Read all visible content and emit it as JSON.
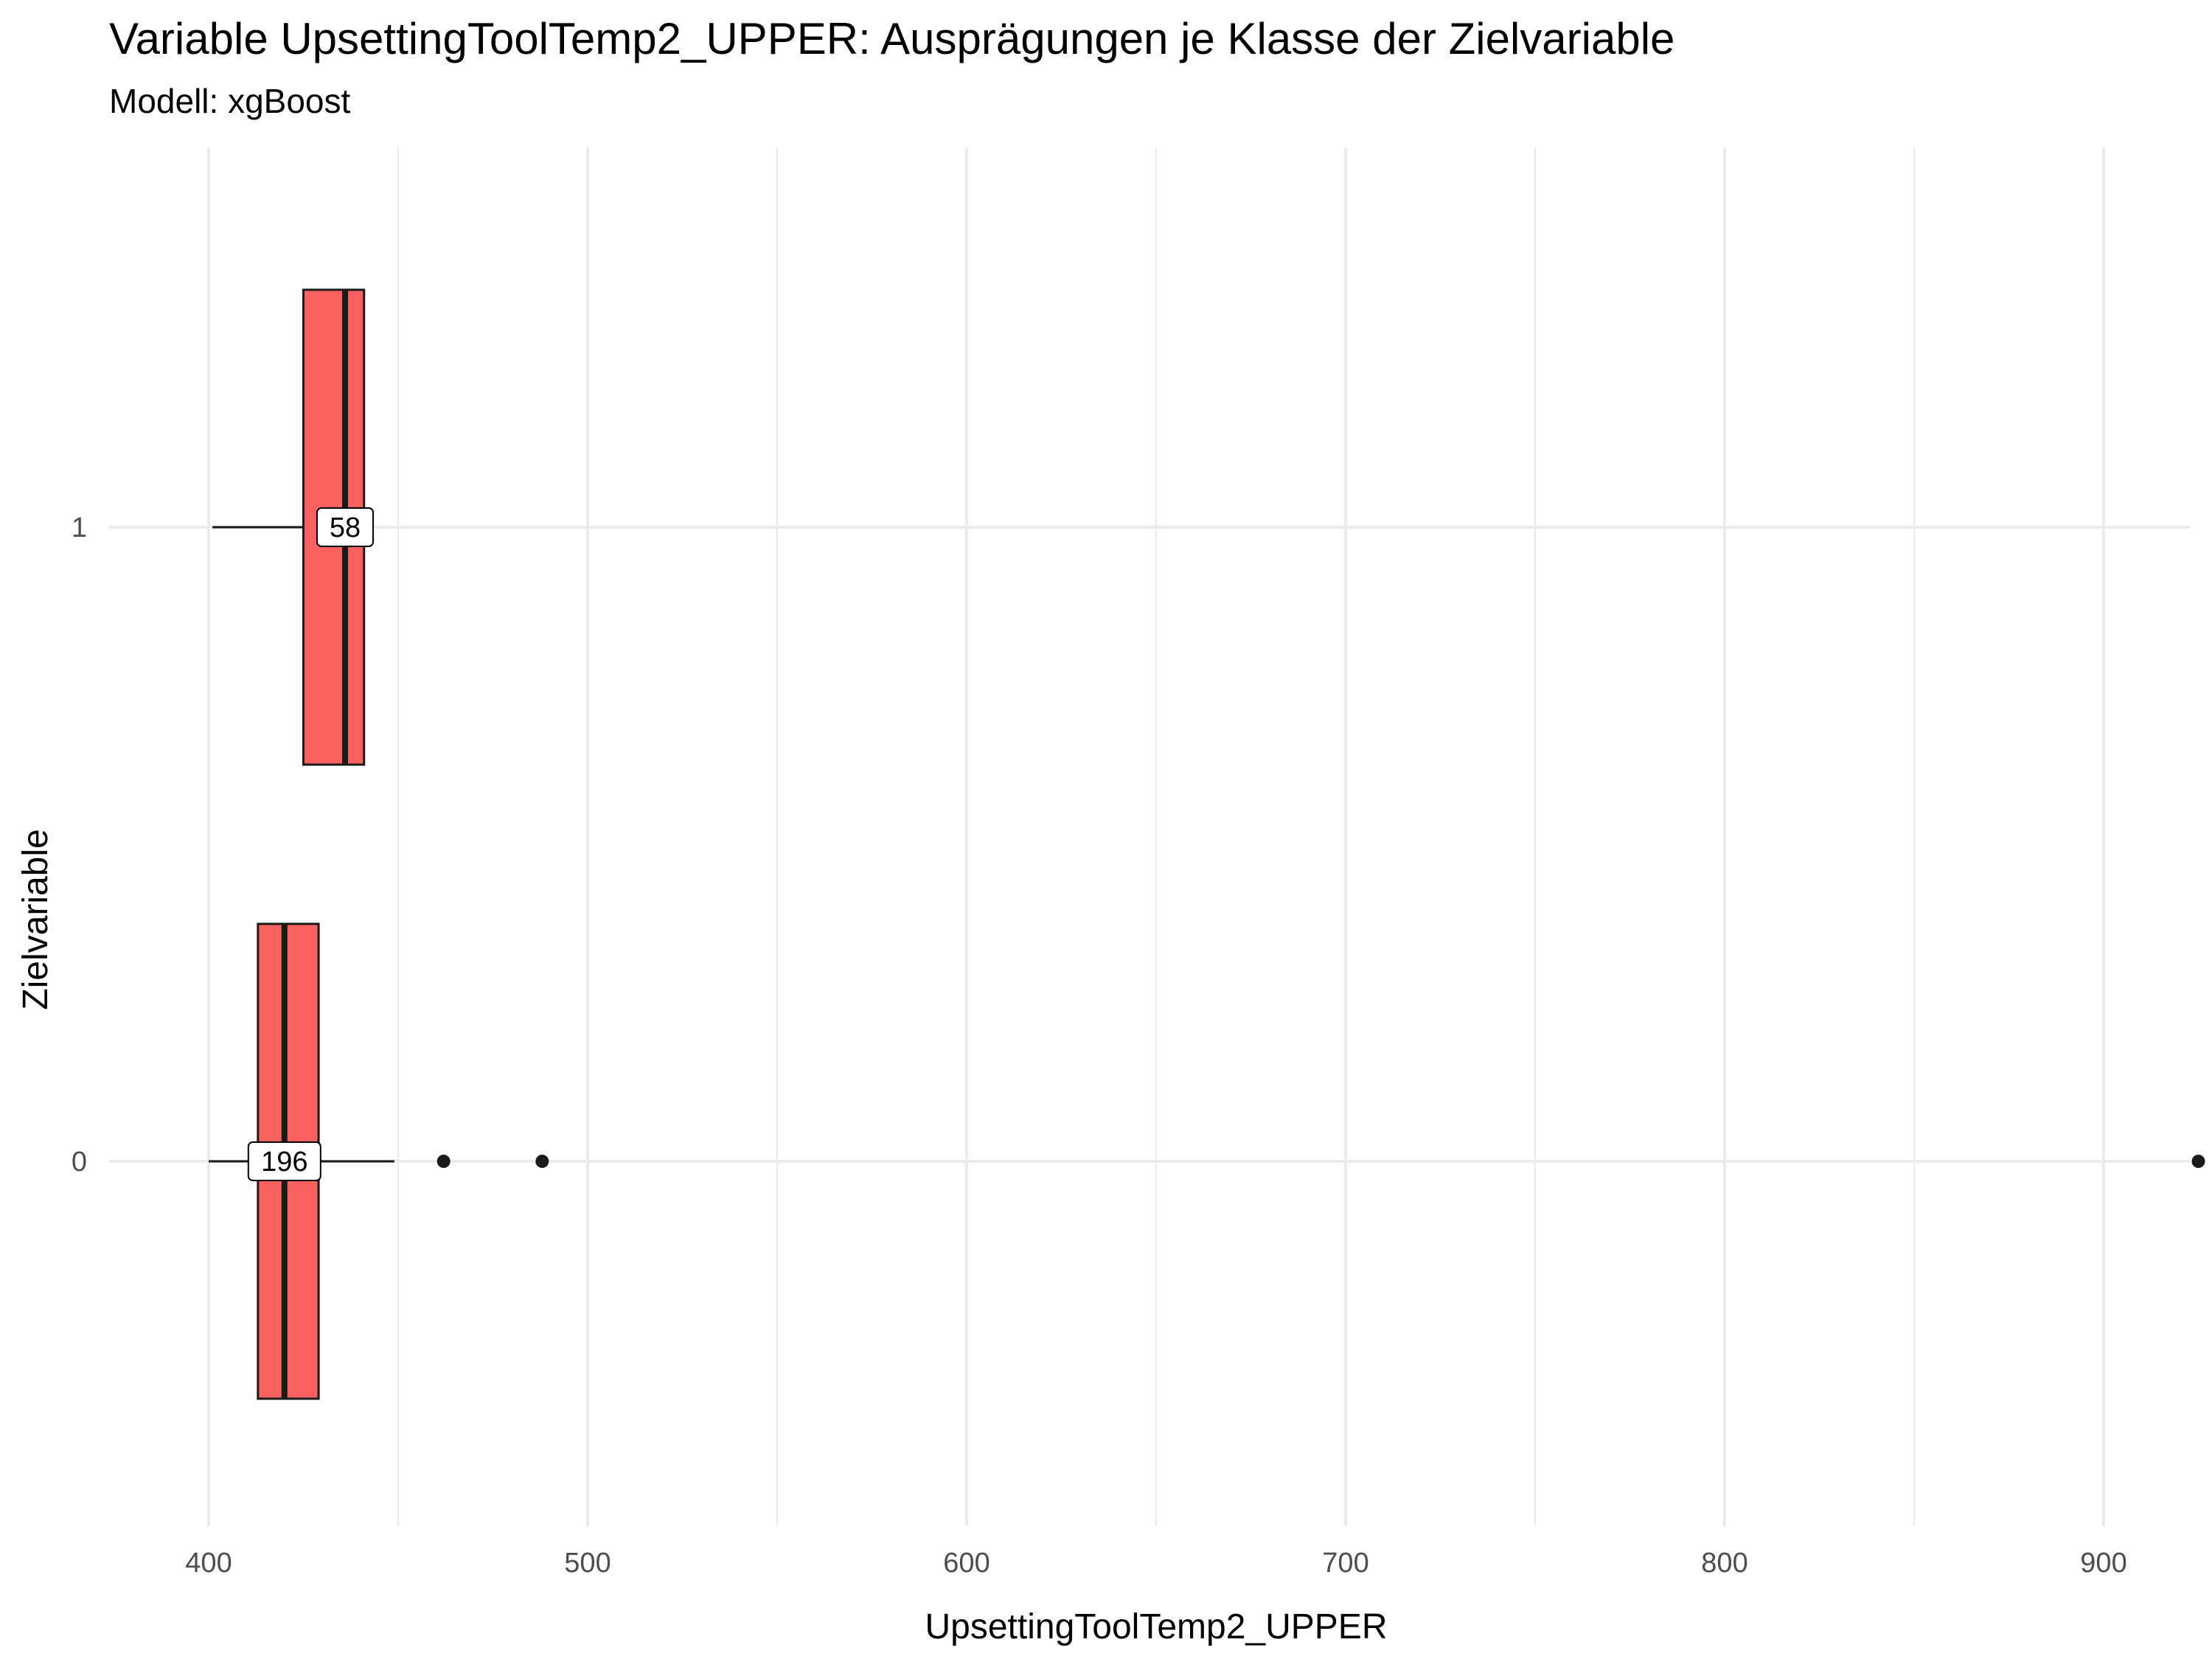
{
  "chart_data": {
    "type": "boxplot",
    "orientation": "horizontal",
    "title": "Variable UpsettingToolTemp2_UPPER: Ausprägungen je Klasse der Zielvariable",
    "subtitle": "Modell: xgBoost",
    "xlabel": "UpsettingToolTemp2_UPPER",
    "ylabel": "Zielvariable",
    "xlim": [
      372,
      952
    ],
    "x_ticks": [
      400,
      500,
      600,
      700,
      800,
      900
    ],
    "categories": [
      "0",
      "1"
    ],
    "grid": true,
    "fill_color": "#F8615D",
    "boxes": [
      {
        "category": "0",
        "count_label": "196",
        "whisker_low": 400,
        "q1": 413,
        "median": 420,
        "q3": 429,
        "whisker_high": 449,
        "outliers": [
          462,
          488,
          925
        ]
      },
      {
        "category": "1",
        "count_label": "58",
        "whisker_low": 401,
        "q1": 425,
        "median": 436,
        "q3": 441,
        "whisker_high": 441,
        "outliers": []
      }
    ]
  }
}
